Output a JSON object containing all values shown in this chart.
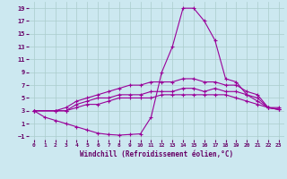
{
  "xlabel": "Windchill (Refroidissement éolien,°C)",
  "bg_color": "#cce8f0",
  "line_color": "#990099",
  "grid_color": "#aacccc",
  "xlim": [
    -0.5,
    23.5
  ],
  "ylim": [
    -1.5,
    20
  ],
  "xticks": [
    0,
    1,
    2,
    3,
    4,
    5,
    6,
    7,
    8,
    9,
    10,
    11,
    12,
    13,
    14,
    15,
    16,
    17,
    18,
    19,
    20,
    21,
    22,
    23
  ],
  "yticks": [
    -1,
    1,
    3,
    5,
    7,
    9,
    11,
    13,
    15,
    17,
    19
  ],
  "line1_x": [
    0,
    1,
    2,
    3,
    4,
    5,
    6,
    7,
    8,
    9,
    10,
    11,
    12,
    13,
    14,
    15,
    16,
    17,
    18,
    19,
    20,
    21,
    22,
    23
  ],
  "line1_y": [
    3,
    2,
    1.5,
    1,
    0.5,
    0,
    -0.5,
    -0.7,
    -0.8,
    -0.7,
    -0.6,
    2,
    9,
    13,
    19,
    19,
    17,
    14,
    8,
    7.5,
    5.5,
    4.5,
    3.5,
    3.2
  ],
  "line2_x": [
    0,
    2,
    3,
    4,
    5,
    6,
    7,
    8,
    9,
    10,
    11,
    12,
    13,
    14,
    15,
    16,
    17,
    18,
    19,
    20,
    21,
    22,
    23
  ],
  "line2_y": [
    3,
    3,
    3.5,
    4.5,
    5,
    5.5,
    6,
    6.5,
    7,
    7,
    7.5,
    7.5,
    7.5,
    8,
    8,
    7.5,
    7.5,
    7,
    7,
    6,
    5.5,
    3.5,
    3.5
  ],
  "line3_x": [
    0,
    2,
    3,
    4,
    5,
    6,
    7,
    8,
    9,
    10,
    11,
    12,
    13,
    14,
    15,
    16,
    17,
    18,
    19,
    20,
    21,
    22,
    23
  ],
  "line3_y": [
    3,
    3,
    3,
    4,
    4.5,
    5,
    5,
    5.5,
    5.5,
    5.5,
    6,
    6,
    6,
    6.5,
    6.5,
    6,
    6.5,
    6,
    6,
    5.5,
    5,
    3.5,
    3.2
  ],
  "line4_x": [
    0,
    2,
    3,
    4,
    5,
    6,
    7,
    8,
    9,
    10,
    11,
    12,
    13,
    14,
    15,
    16,
    17,
    18,
    19,
    20,
    21,
    22,
    23
  ],
  "line4_y": [
    3,
    3,
    3,
    3.5,
    4,
    4,
    4.5,
    5,
    5,
    5,
    5,
    5.5,
    5.5,
    5.5,
    5.5,
    5.5,
    5.5,
    5.5,
    5,
    4.5,
    4,
    3.5,
    3.2
  ]
}
